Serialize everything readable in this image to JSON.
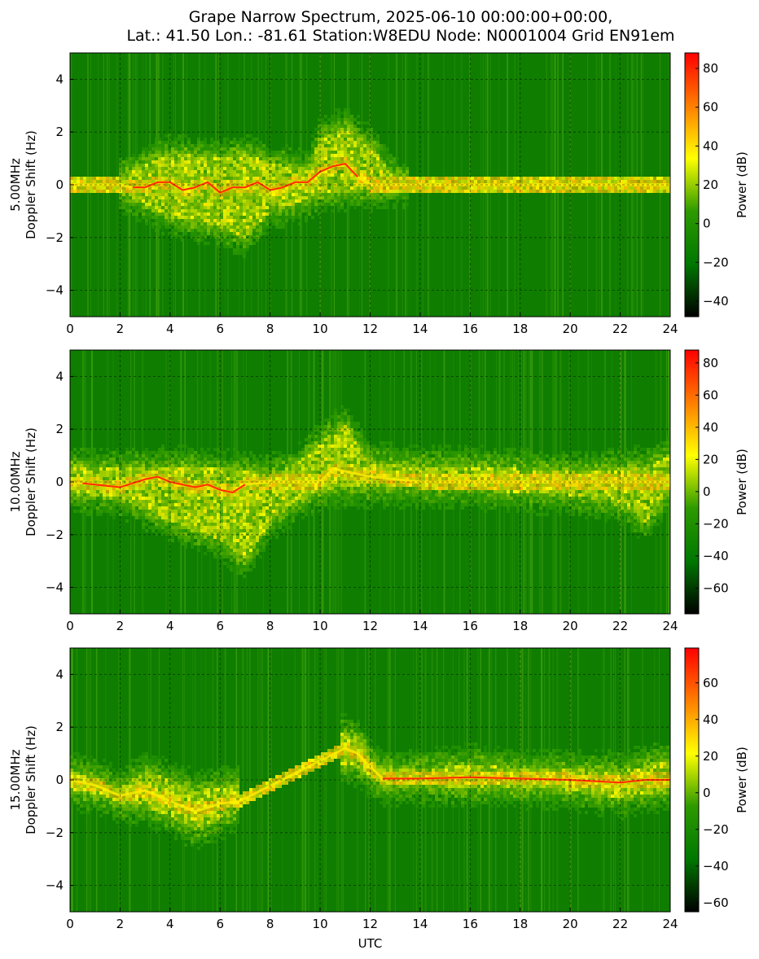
{
  "title": {
    "line1": "Grape Narrow Spectrum, 2025-06-10 00:00:00+00:00,",
    "line2": "Lat.: 41.50 Lon.: -81.61 Station:W8EDU Node: N0001004 Grid EN91em"
  },
  "chart_data": [
    {
      "type": "heatmap",
      "frequency_label": "5.00MHz",
      "ylabel": "Doppler Shift (Hz)",
      "xlabel": "",
      "xlim": [
        0,
        24
      ],
      "ylim": [
        -5,
        5
      ],
      "x_ticks": [
        0,
        2,
        4,
        6,
        8,
        10,
        12,
        14,
        16,
        18,
        20,
        22,
        24
      ],
      "y_ticks": [
        -4,
        -2,
        0,
        2,
        4
      ],
      "grid": true,
      "colorbar": {
        "label": "Power (dB)",
        "range": [
          -48,
          88
        ],
        "ticks": [
          -40,
          -20,
          0,
          20,
          40,
          60,
          80
        ]
      },
      "colormap": [
        "#000000",
        "#007800",
        "#2d9a00",
        "#ffff00",
        "#ff7e00",
        "#ff0000"
      ],
      "carrier_trace": {
        "x": [
          0,
          1,
          2,
          2.5,
          3,
          3.5,
          4,
          4.5,
          5,
          5.5,
          6,
          6.5,
          7,
          7.5,
          8,
          8.5,
          9,
          9.5,
          10,
          10.5,
          11,
          11.5,
          12,
          13,
          16,
          20,
          22,
          24
        ],
        "y": [
          0,
          0,
          0,
          -0.1,
          -0.1,
          0.1,
          0.1,
          -0.2,
          -0.1,
          0.1,
          -0.3,
          -0.1,
          -0.1,
          0.1,
          -0.2,
          -0.1,
          0.1,
          0.1,
          0.5,
          0.7,
          0.8,
          0.3,
          0,
          0,
          0,
          0,
          0,
          0
        ],
        "strong_range": [
          2.5,
          11.5
        ]
      },
      "spread_bands": [
        {
          "x": [
            2,
            4,
            6,
            7,
            8,
            9.5,
            10,
            11,
            12,
            12.8,
            13.5
          ],
          "upper": [
            0.3,
            1.2,
            1.0,
            1.2,
            0.8,
            0.6,
            1.8,
            2.2,
            1.5,
            0.5,
            0.1
          ],
          "lower": [
            -0.3,
            -1.2,
            -1.6,
            -2.0,
            -1.0,
            -0.6,
            -0.3,
            -0.3,
            -0.2,
            -0.1,
            -0.1
          ]
        }
      ]
    },
    {
      "type": "heatmap",
      "frequency_label": "10.00MHz",
      "ylabel": "Doppler Shift (Hz)",
      "xlabel": "",
      "xlim": [
        0,
        24
      ],
      "ylim": [
        -5,
        5
      ],
      "x_ticks": [
        0,
        2,
        4,
        6,
        8,
        10,
        12,
        14,
        16,
        18,
        20,
        22,
        24
      ],
      "y_ticks": [
        -4,
        -2,
        0,
        2,
        4
      ],
      "grid": true,
      "colorbar": {
        "label": "Power (dB)",
        "range": [
          -76,
          88
        ],
        "ticks": [
          -60,
          -40,
          -20,
          0,
          20,
          40,
          60,
          80
        ]
      },
      "colormap": [
        "#000000",
        "#007800",
        "#2d9a00",
        "#ffff00",
        "#ff7e00",
        "#ff0000"
      ],
      "carrier_trace": {
        "x": [
          0,
          1,
          2,
          3,
          3.5,
          4,
          4.5,
          5,
          5.5,
          6,
          6.5,
          7,
          8,
          10,
          10.5,
          11,
          11.5,
          12,
          14,
          16,
          18,
          20,
          22,
          23,
          24
        ],
        "y": [
          0,
          -0.1,
          -0.2,
          0.1,
          0.2,
          0,
          -0.1,
          -0.2,
          -0.1,
          -0.3,
          -0.4,
          -0.1,
          0,
          0,
          0.5,
          0.4,
          0.3,
          0.2,
          0,
          0,
          0,
          0,
          0,
          0,
          0
        ],
        "strong_range": [
          0.5,
          7
        ]
      },
      "spread_bands": [
        {
          "x": [
            0,
            2,
            4,
            6,
            7,
            8,
            9,
            10,
            11,
            12,
            14,
            16,
            18,
            20,
            22,
            23,
            24
          ],
          "upper": [
            0.6,
            0.5,
            0.6,
            0.5,
            0.4,
            0.3,
            0.6,
            1.5,
            2.2,
            0.8,
            0.6,
            0.6,
            0.5,
            0.4,
            0.5,
            0.6,
            1.0
          ],
          "lower": [
            -0.4,
            -0.6,
            -1.5,
            -2.2,
            -3.0,
            -1.5,
            -0.8,
            -0.3,
            -0.2,
            -0.2,
            -0.2,
            -0.3,
            -0.4,
            -0.5,
            -0.8,
            -1.5,
            -0.4
          ]
        }
      ]
    },
    {
      "type": "heatmap",
      "frequency_label": "15.00MHz",
      "ylabel": "Doppler Shift (Hz)",
      "xlabel": "UTC",
      "xlim": [
        0,
        24
      ],
      "ylim": [
        -5,
        5
      ],
      "x_ticks": [
        0,
        2,
        4,
        6,
        8,
        10,
        12,
        14,
        16,
        18,
        20,
        22,
        24
      ],
      "y_ticks": [
        -4,
        -2,
        0,
        2,
        4
      ],
      "grid": true,
      "colorbar": {
        "label": "Power (dB)",
        "range": [
          -65,
          79
        ],
        "ticks": [
          -60,
          -40,
          -20,
          0,
          20,
          40,
          60
        ]
      },
      "colormap": [
        "#000000",
        "#007800",
        "#2d9a00",
        "#ffff00",
        "#ff7e00",
        "#ff0000"
      ],
      "carrier_trace": {
        "x": [
          0,
          0.5,
          1,
          2,
          3,
          4,
          5,
          6,
          6.8,
          11,
          11.5,
          12,
          12.5,
          14,
          16,
          18,
          20,
          22,
          23,
          24
        ],
        "y": [
          0,
          -0.1,
          -0.2,
          -0.6,
          -0.4,
          -0.8,
          -1.2,
          -0.9,
          -0.8,
          1.2,
          1.0,
          0.5,
          0.05,
          0.05,
          0.1,
          0.05,
          0,
          -0.1,
          0,
          0
        ],
        "strong_range": [
          12.5,
          24
        ]
      },
      "spread_bands": [
        {
          "x": [
            0,
            1,
            2,
            3,
            4,
            5,
            6,
            6.8
          ],
          "upper": [
            0.3,
            0.1,
            -0.3,
            0.3,
            0,
            -0.4,
            -0.3,
            -0.2
          ],
          "lower": [
            -0.4,
            -0.5,
            -0.9,
            -1.0,
            -1.4,
            -1.9,
            -1.5,
            -1.2
          ]
        },
        {
          "x": [
            10.8,
            11.5,
            12,
            12.5,
            14,
            16,
            18,
            20,
            22,
            24
          ],
          "upper": [
            1.8,
            1.6,
            0.9,
            0.4,
            0.4,
            0.6,
            0.4,
            0.4,
            0.3,
            0.8
          ],
          "lower": [
            0.6,
            0.5,
            0.1,
            -0.2,
            -0.2,
            -0.3,
            -0.3,
            -0.4,
            -0.7,
            -0.4
          ]
        }
      ]
    }
  ]
}
